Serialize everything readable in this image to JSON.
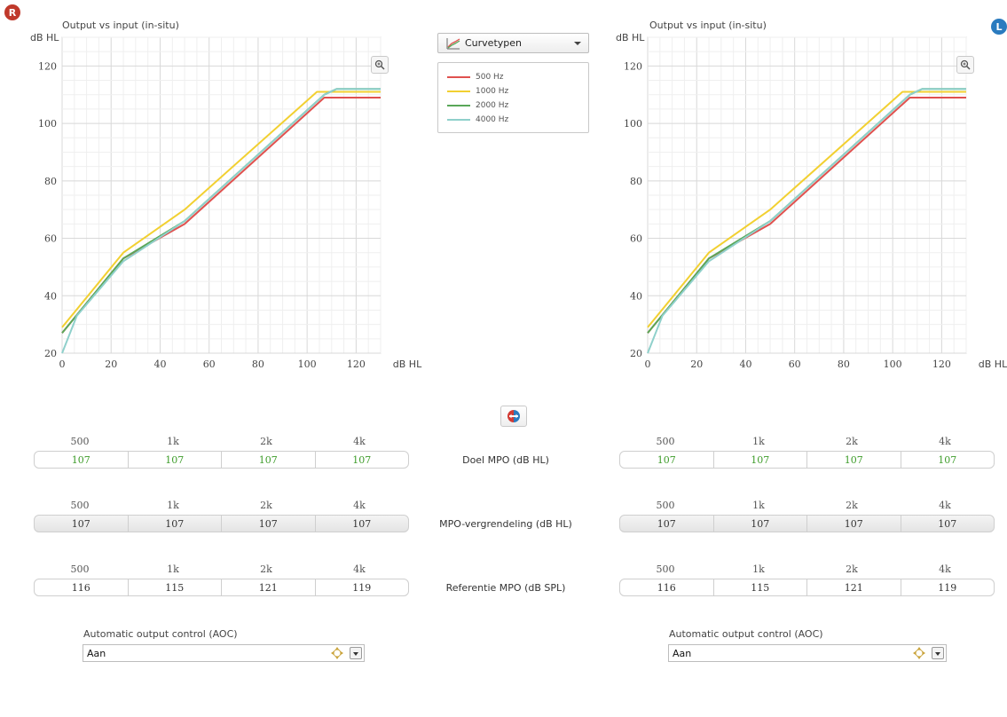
{
  "badges": {
    "right": {
      "label": "R",
      "color": "#c0392b"
    },
    "left": {
      "label": "L",
      "color": "#2a7bbf"
    }
  },
  "chart_data": [
    {
      "type": "line",
      "title": "Output vs input (in-situ)",
      "ylabel": "dB HL",
      "xlabel": "dB HL",
      "xlim": [
        0,
        130
      ],
      "ylim": [
        20,
        130
      ],
      "xticks": [
        "0",
        "20",
        "40",
        "60",
        "80",
        "100",
        "120"
      ],
      "yticks": [
        "20",
        "40",
        "60",
        "80",
        "100",
        "120"
      ],
      "grid": true,
      "series": [
        {
          "name": "500 Hz",
          "color": "#e0514f",
          "points": [
            [
              0,
              27
            ],
            [
              25,
              53
            ],
            [
              50,
              65
            ],
            [
              107,
              109
            ],
            [
              130,
              109
            ]
          ]
        },
        {
          "name": "1000 Hz",
          "color": "#f2d031",
          "points": [
            [
              0,
              29
            ],
            [
              25,
              55
            ],
            [
              50,
              70
            ],
            [
              104,
              111
            ],
            [
              130,
              111
            ]
          ]
        },
        {
          "name": "2000 Hz",
          "color": "#59a758",
          "points": [
            [
              0,
              27
            ],
            [
              25,
              53
            ],
            [
              50,
              66
            ],
            [
              107,
              110
            ],
            [
              112,
              112
            ],
            [
              130,
              112
            ]
          ]
        },
        {
          "name": "4000 Hz",
          "color": "#8fd0cb",
          "points": [
            [
              0,
              20
            ],
            [
              6,
              33
            ],
            [
              25,
              52
            ],
            [
              50,
              66
            ],
            [
              107,
              110
            ],
            [
              112,
              112
            ],
            [
              130,
              112
            ]
          ]
        }
      ]
    },
    {
      "type": "line",
      "title": "Output vs input (in-situ)",
      "ylabel": "dB HL",
      "xlabel": "dB HL",
      "xlim": [
        0,
        130
      ],
      "ylim": [
        20,
        130
      ],
      "xticks": [
        "0",
        "20",
        "40",
        "60",
        "80",
        "100",
        "120"
      ],
      "yticks": [
        "20",
        "40",
        "60",
        "80",
        "100",
        "120"
      ],
      "grid": true,
      "series": [
        {
          "name": "500 Hz",
          "color": "#e0514f",
          "points": [
            [
              0,
              27
            ],
            [
              25,
              53
            ],
            [
              50,
              65
            ],
            [
              107,
              109
            ],
            [
              130,
              109
            ]
          ]
        },
        {
          "name": "1000 Hz",
          "color": "#f2d031",
          "points": [
            [
              0,
              29
            ],
            [
              25,
              55
            ],
            [
              50,
              70
            ],
            [
              104,
              111
            ],
            [
              130,
              111
            ]
          ]
        },
        {
          "name": "2000 Hz",
          "color": "#59a758",
          "points": [
            [
              0,
              27
            ],
            [
              25,
              53
            ],
            [
              50,
              66
            ],
            [
              107,
              110
            ],
            [
              112,
              112
            ],
            [
              130,
              112
            ]
          ]
        },
        {
          "name": "4000 Hz",
          "color": "#8fd0cb",
          "points": [
            [
              0,
              20
            ],
            [
              6,
              33
            ],
            [
              25,
              52
            ],
            [
              50,
              66
            ],
            [
              107,
              110
            ],
            [
              112,
              112
            ],
            [
              130,
              112
            ]
          ]
        }
      ]
    }
  ],
  "curve_dropdown": {
    "label": "Curvetypen"
  },
  "legend": {
    "items": [
      {
        "label": "500 Hz",
        "color": "#e0514f"
      },
      {
        "label": "1000 Hz",
        "color": "#f2d031"
      },
      {
        "label": "2000 Hz",
        "color": "#59a758"
      },
      {
        "label": "4000 Hz",
        "color": "#8fd0cb"
      }
    ]
  },
  "freqs": [
    "500",
    "1k",
    "2k",
    "4k"
  ],
  "rows": {
    "doel": {
      "label": "Doel MPO (dB HL)",
      "right": [
        "107",
        "107",
        "107",
        "107"
      ],
      "left": [
        "107",
        "107",
        "107",
        "107"
      ],
      "color": "#3f9d2b"
    },
    "lock": {
      "label": "MPO-vergrendeling (dB HL)",
      "right": [
        "107",
        "107",
        "107",
        "107"
      ],
      "left": [
        "107",
        "107",
        "107",
        "107"
      ]
    },
    "ref": {
      "label": "Referentie MPO (dB SPL)",
      "right": [
        "116",
        "115",
        "121",
        "119"
      ],
      "left": [
        "116",
        "115",
        "121",
        "119"
      ]
    }
  },
  "aoc": {
    "label": "Automatic output control (AOC)",
    "right_value": "Aan",
    "left_value": "Aan"
  }
}
